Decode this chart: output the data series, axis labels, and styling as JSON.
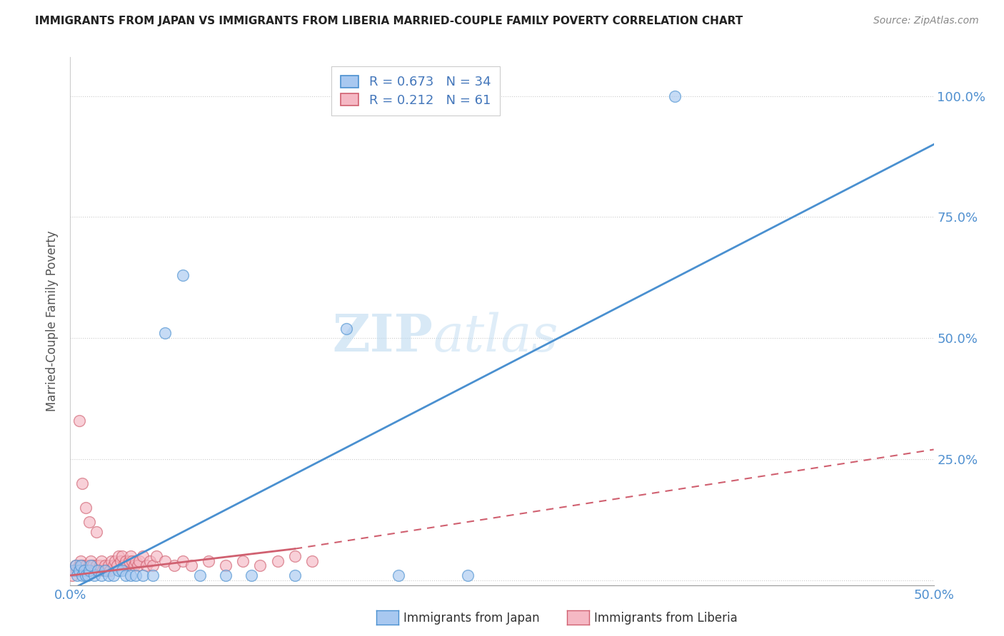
{
  "title": "IMMIGRANTS FROM JAPAN VS IMMIGRANTS FROM LIBERIA MARRIED-COUPLE FAMILY POVERTY CORRELATION CHART",
  "source": "Source: ZipAtlas.com",
  "ylabel": "Married-Couple Family Poverty",
  "xlabel_japan": "Immigrants from Japan",
  "xlabel_liberia": "Immigrants from Liberia",
  "xlim": [
    0.0,
    0.5
  ],
  "ylim": [
    -0.01,
    1.08
  ],
  "yticks": [
    0.0,
    0.25,
    0.5,
    0.75,
    1.0
  ],
  "ytick_labels": [
    "",
    "25.0%",
    "50.0%",
    "75.0%",
    "100.0%"
  ],
  "xticks": [
    0.0,
    0.1,
    0.2,
    0.3,
    0.4,
    0.5
  ],
  "xtick_labels": [
    "0.0%",
    "",
    "",
    "",
    "",
    "50.0%"
  ],
  "legend_japan_R": "0.673",
  "legend_japan_N": "34",
  "legend_liberia_R": "0.212",
  "legend_liberia_N": "61",
  "color_japan": "#a8c8f0",
  "color_liberia": "#f5b8c4",
  "color_japan_line": "#4a90d0",
  "color_liberia_line": "#d06070",
  "color_axis_labels": "#5090d0",
  "watermark_zip": "ZIP",
  "watermark_atlas": "atlas",
  "japan_line_x0": 0.0,
  "japan_line_y0": -0.02,
  "japan_line_x1": 0.5,
  "japan_line_y1": 0.9,
  "liberia_line_x0": 0.0,
  "liberia_line_y0": 0.01,
  "liberia_line_solid_x1": 0.13,
  "liberia_line_dashed_x1": 0.5,
  "liberia_line_y_at_solid": 0.065,
  "liberia_line_y_at_dashed": 0.27,
  "japan_scatter_x": [
    0.002,
    0.003,
    0.004,
    0.005,
    0.006,
    0.007,
    0.008,
    0.009,
    0.01,
    0.011,
    0.012,
    0.014,
    0.016,
    0.018,
    0.02,
    0.022,
    0.025,
    0.028,
    0.03,
    0.032,
    0.035,
    0.038,
    0.042,
    0.048,
    0.055,
    0.065,
    0.075,
    0.09,
    0.105,
    0.13,
    0.16,
    0.19,
    0.23,
    0.35
  ],
  "japan_scatter_y": [
    0.02,
    0.03,
    0.01,
    0.02,
    0.03,
    0.01,
    0.02,
    0.01,
    0.01,
    0.02,
    0.03,
    0.01,
    0.02,
    0.01,
    0.02,
    0.01,
    0.01,
    0.02,
    0.02,
    0.01,
    0.01,
    0.01,
    0.01,
    0.01,
    0.51,
    0.63,
    0.01,
    0.01,
    0.01,
    0.01,
    0.52,
    0.01,
    0.01,
    1.0
  ],
  "liberia_scatter_x": [
    0.001,
    0.002,
    0.003,
    0.004,
    0.005,
    0.006,
    0.007,
    0.008,
    0.009,
    0.01,
    0.011,
    0.012,
    0.013,
    0.014,
    0.015,
    0.016,
    0.017,
    0.018,
    0.019,
    0.02,
    0.021,
    0.022,
    0.023,
    0.024,
    0.025,
    0.026,
    0.027,
    0.028,
    0.029,
    0.03,
    0.031,
    0.032,
    0.033,
    0.034,
    0.035,
    0.036,
    0.037,
    0.038,
    0.039,
    0.04,
    0.042,
    0.044,
    0.046,
    0.048,
    0.05,
    0.055,
    0.06,
    0.065,
    0.07,
    0.08,
    0.09,
    0.1,
    0.11,
    0.12,
    0.13,
    0.14,
    0.005,
    0.007,
    0.009,
    0.011,
    0.015
  ],
  "liberia_scatter_y": [
    0.01,
    0.02,
    0.03,
    0.02,
    0.03,
    0.04,
    0.03,
    0.02,
    0.03,
    0.02,
    0.03,
    0.04,
    0.03,
    0.02,
    0.03,
    0.02,
    0.03,
    0.04,
    0.02,
    0.03,
    0.02,
    0.03,
    0.02,
    0.04,
    0.03,
    0.04,
    0.03,
    0.05,
    0.04,
    0.05,
    0.03,
    0.04,
    0.03,
    0.04,
    0.05,
    0.04,
    0.03,
    0.04,
    0.03,
    0.04,
    0.05,
    0.03,
    0.04,
    0.03,
    0.05,
    0.04,
    0.03,
    0.04,
    0.03,
    0.04,
    0.03,
    0.04,
    0.03,
    0.04,
    0.05,
    0.04,
    0.33,
    0.2,
    0.15,
    0.12,
    0.1
  ]
}
